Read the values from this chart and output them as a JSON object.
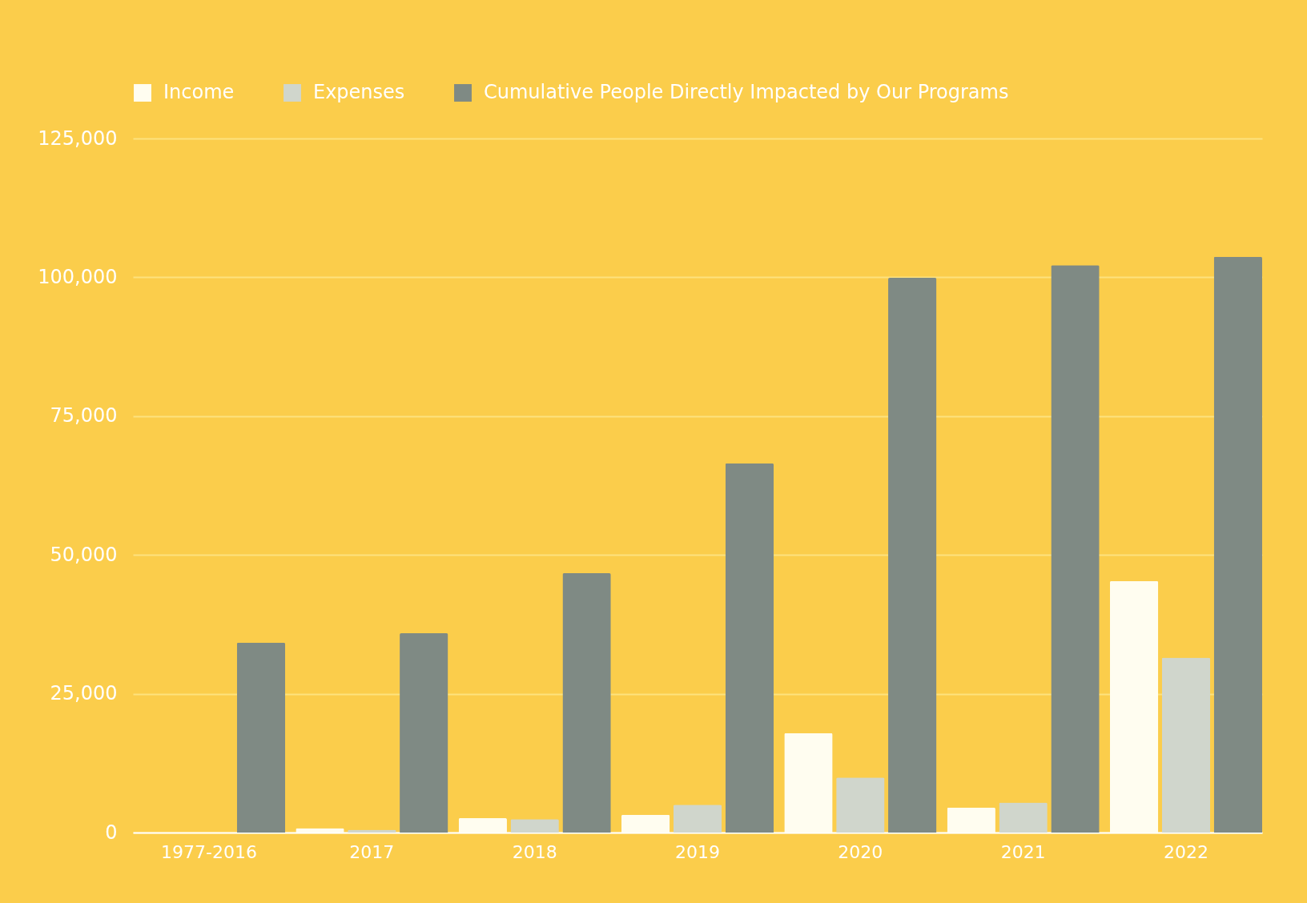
{
  "chart_data": {
    "type": "bar",
    "categories": [
      "1977-2016",
      "2017",
      "2018",
      "2019",
      "2020",
      "2021",
      "2022"
    ],
    "series": [
      {
        "name": "Income",
        "color": "#fffdf0",
        "values": [
          null,
          800,
          2600,
          3200,
          17900,
          4500,
          45300
        ]
      },
      {
        "name": "Expenses",
        "color": "#d0d6cc",
        "values": [
          null,
          500,
          2400,
          5000,
          9900,
          5400,
          31500
        ]
      },
      {
        "name": "Cumulative People Directly Impacted by Our Programs",
        "color": "#7f8a84",
        "values": [
          34200,
          35900,
          46700,
          66500,
          99900,
          102200,
          103700
        ]
      }
    ],
    "ylim": [
      0,
      125000
    ],
    "yticks": [
      0,
      {
        "value": 25000,
        "label": "25,000"
      },
      {
        "value": 50000,
        "label": "50,000"
      },
      {
        "value": 75000,
        "label": "75,000"
      },
      {
        "value": 100000,
        "label": "100,000"
      },
      {
        "value": 125000,
        "label": "125,000"
      }
    ],
    "grid": "y",
    "legend": "top"
  }
}
